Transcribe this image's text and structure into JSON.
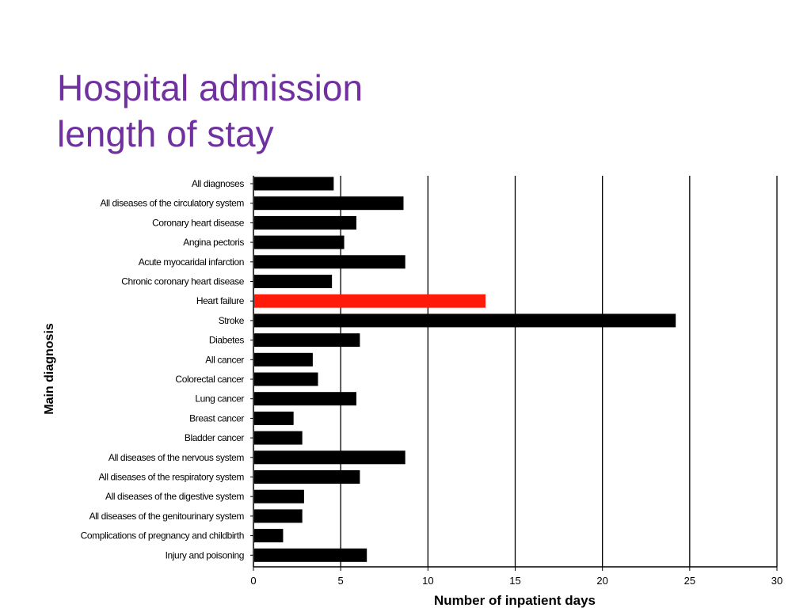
{
  "slide": {
    "title_line1": "Hospital admission",
    "title_line2": "length of stay"
  },
  "colors": {
    "title": "#7030a0",
    "bar": "#000000",
    "highlight": "#ff1a0a"
  },
  "chart_data": {
    "type": "bar",
    "orientation": "horizontal",
    "title": "",
    "xlabel": "Number of inpatient days",
    "ylabel": "Main diagnosis",
    "xlim": [
      0,
      30
    ],
    "xticks": [
      0,
      5,
      10,
      15,
      20,
      25,
      30
    ],
    "grid": "vertical lines at major ticks",
    "categories": [
      "All diagnoses",
      "All diseases of the circulatory system",
      "Coronary heart disease",
      "Angina pectoris",
      "Acute myocaridal infarction",
      "Chronic coronary heart disease",
      "Heart failure",
      "Stroke",
      "Diabetes",
      "All cancer",
      "Colorectal cancer",
      "Lung cancer",
      "Breast cancer",
      "Bladder cancer",
      "All diseases of the nervous system",
      "All diseases of the respiratory system",
      "All diseases of the digestive system",
      "All diseases of the genitourinary system",
      "Complications of pregnancy and childbirth",
      "Injury and poisoning"
    ],
    "values": [
      4.6,
      8.6,
      5.9,
      5.2,
      8.7,
      4.5,
      13.3,
      24.2,
      6.1,
      3.4,
      3.7,
      5.9,
      2.3,
      2.8,
      8.7,
      6.1,
      2.9,
      2.8,
      1.7,
      6.5
    ],
    "highlighted_category": "Heart failure"
  }
}
